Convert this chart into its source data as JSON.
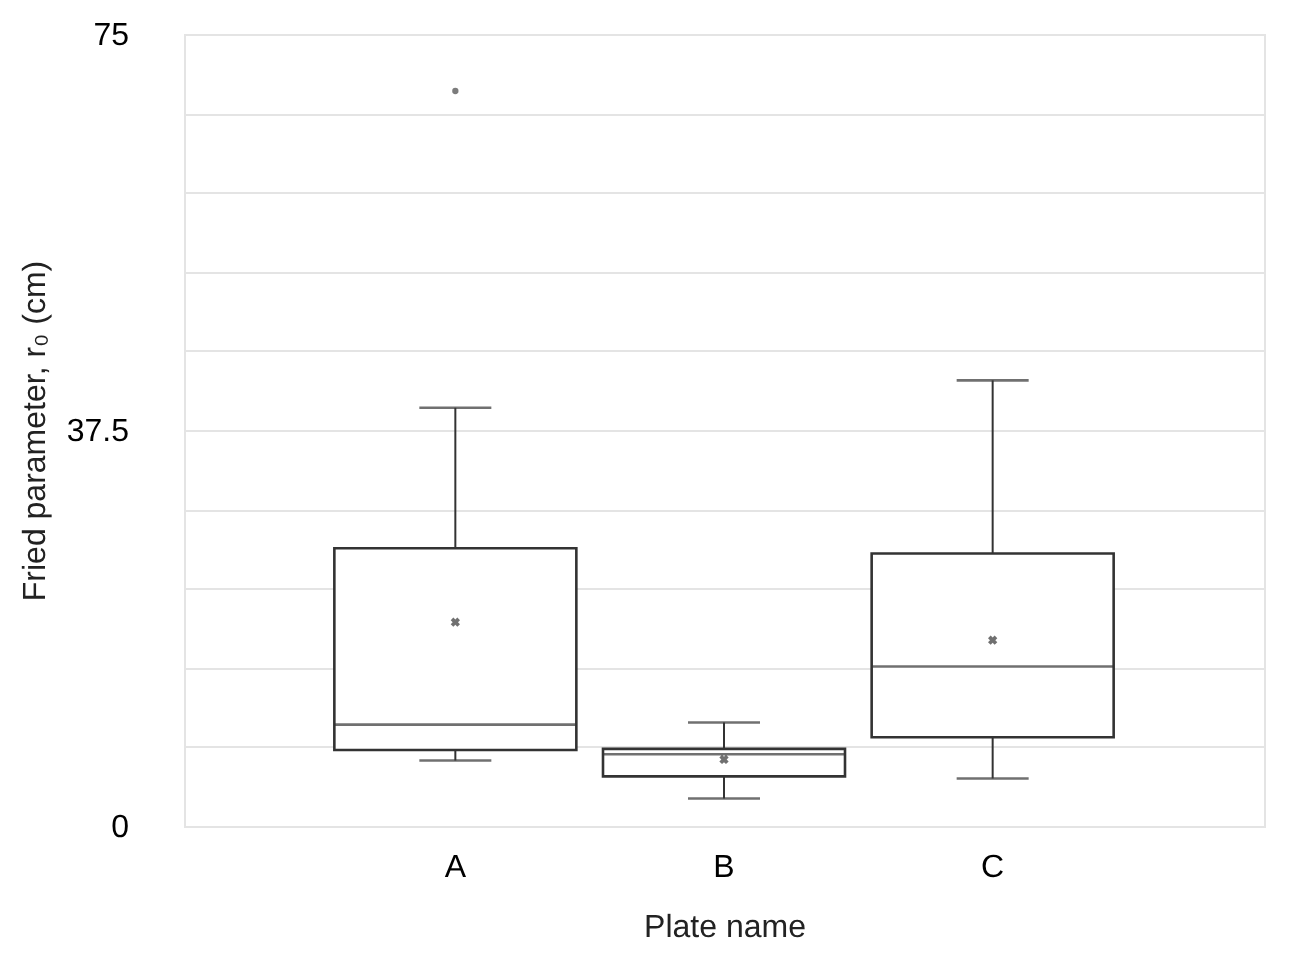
{
  "chart_data": {
    "type": "box",
    "xlabel": "Plate name",
    "ylabel": "Fried parameter, r₀ (cm)",
    "categories": [
      "A",
      "B",
      "C"
    ],
    "boxes": [
      {
        "low": 6.2,
        "q1": 7.2,
        "median": 9.6,
        "q3": 26.3,
        "high": 39.6,
        "mean": 19.3,
        "outliers": [
          69.6
        ]
      },
      {
        "low": 2.6,
        "q1": 4.7,
        "median": 6.8,
        "q3": 7.3,
        "high": 9.8,
        "mean": 6.3
      },
      {
        "low": 4.5,
        "q1": 8.4,
        "median": 15.1,
        "q3": 25.8,
        "high": 42.2,
        "mean": 17.6
      }
    ],
    "ylim": [
      0,
      75
    ],
    "yticks": [
      0,
      {
        "value": 7.5,
        "label": null
      },
      {
        "value": 15,
        "label": null
      },
      {
        "value": 22.5,
        "label": null
      },
      {
        "value": 30,
        "label": null
      },
      37.5,
      {
        "value": 45,
        "label": null
      },
      {
        "value": 52.5,
        "label": null
      },
      {
        "value": 60,
        "label": null
      },
      {
        "value": 67.5,
        "label": null
      },
      75
    ],
    "grid": "y"
  }
}
